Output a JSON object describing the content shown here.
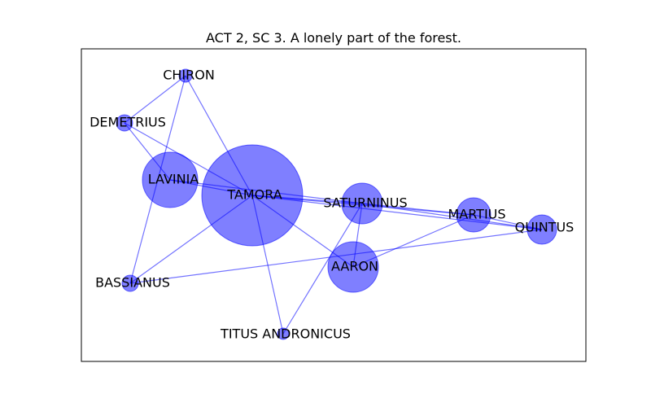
{
  "title": "ACT 2, SC 3. A lonely part of the forest.",
  "colors": {
    "node_fill": "#0000ff",
    "edge": "#0000ff",
    "frame": "#000000"
  },
  "nodes": [
    {
      "id": "CHIRON",
      "label": "CHIRON"
    },
    {
      "id": "DEMETRIUS",
      "label": "DEMETRIUS"
    },
    {
      "id": "LAVINIA",
      "label": "LAVINIA"
    },
    {
      "id": "TAMORA",
      "label": "TAMORA"
    },
    {
      "id": "SATURNINUS",
      "label": "SATURNINUS"
    },
    {
      "id": "MARTIUS",
      "label": "MARTIUS"
    },
    {
      "id": "QUINTUS",
      "label": "QUINTUS"
    },
    {
      "id": "AARON",
      "label": "AARON"
    },
    {
      "id": "BASSIANUS",
      "label": "BASSIANUS"
    },
    {
      "id": "TITUS_ANDRONICUS",
      "label": "TITUS ANDRONICUS"
    }
  ],
  "edges": [
    [
      "CHIRON",
      "DEMETRIUS"
    ],
    [
      "CHIRON",
      "TAMORA"
    ],
    [
      "CHIRON",
      "BASSIANUS"
    ],
    [
      "DEMETRIUS",
      "LAVINIA"
    ],
    [
      "DEMETRIUS",
      "TAMORA"
    ],
    [
      "LAVINIA",
      "TAMORA"
    ],
    [
      "LAVINIA",
      "SATURNINUS"
    ],
    [
      "TAMORA",
      "SATURNINUS"
    ],
    [
      "TAMORA",
      "MARTIUS"
    ],
    [
      "TAMORA",
      "QUINTUS"
    ],
    [
      "TAMORA",
      "AARON"
    ],
    [
      "TAMORA",
      "BASSIANUS"
    ],
    [
      "TAMORA",
      "TITUS_ANDRONICUS"
    ],
    [
      "SATURNINUS",
      "MARTIUS"
    ],
    [
      "SATURNINUS",
      "QUINTUS"
    ],
    [
      "SATURNINUS",
      "AARON"
    ],
    [
      "SATURNINUS",
      "TITUS_ANDRONICUS"
    ],
    [
      "MARTIUS",
      "QUINTUS"
    ],
    [
      "MARTIUS",
      "AARON"
    ],
    [
      "QUINTUS",
      "BASSIANUS"
    ]
  ]
}
